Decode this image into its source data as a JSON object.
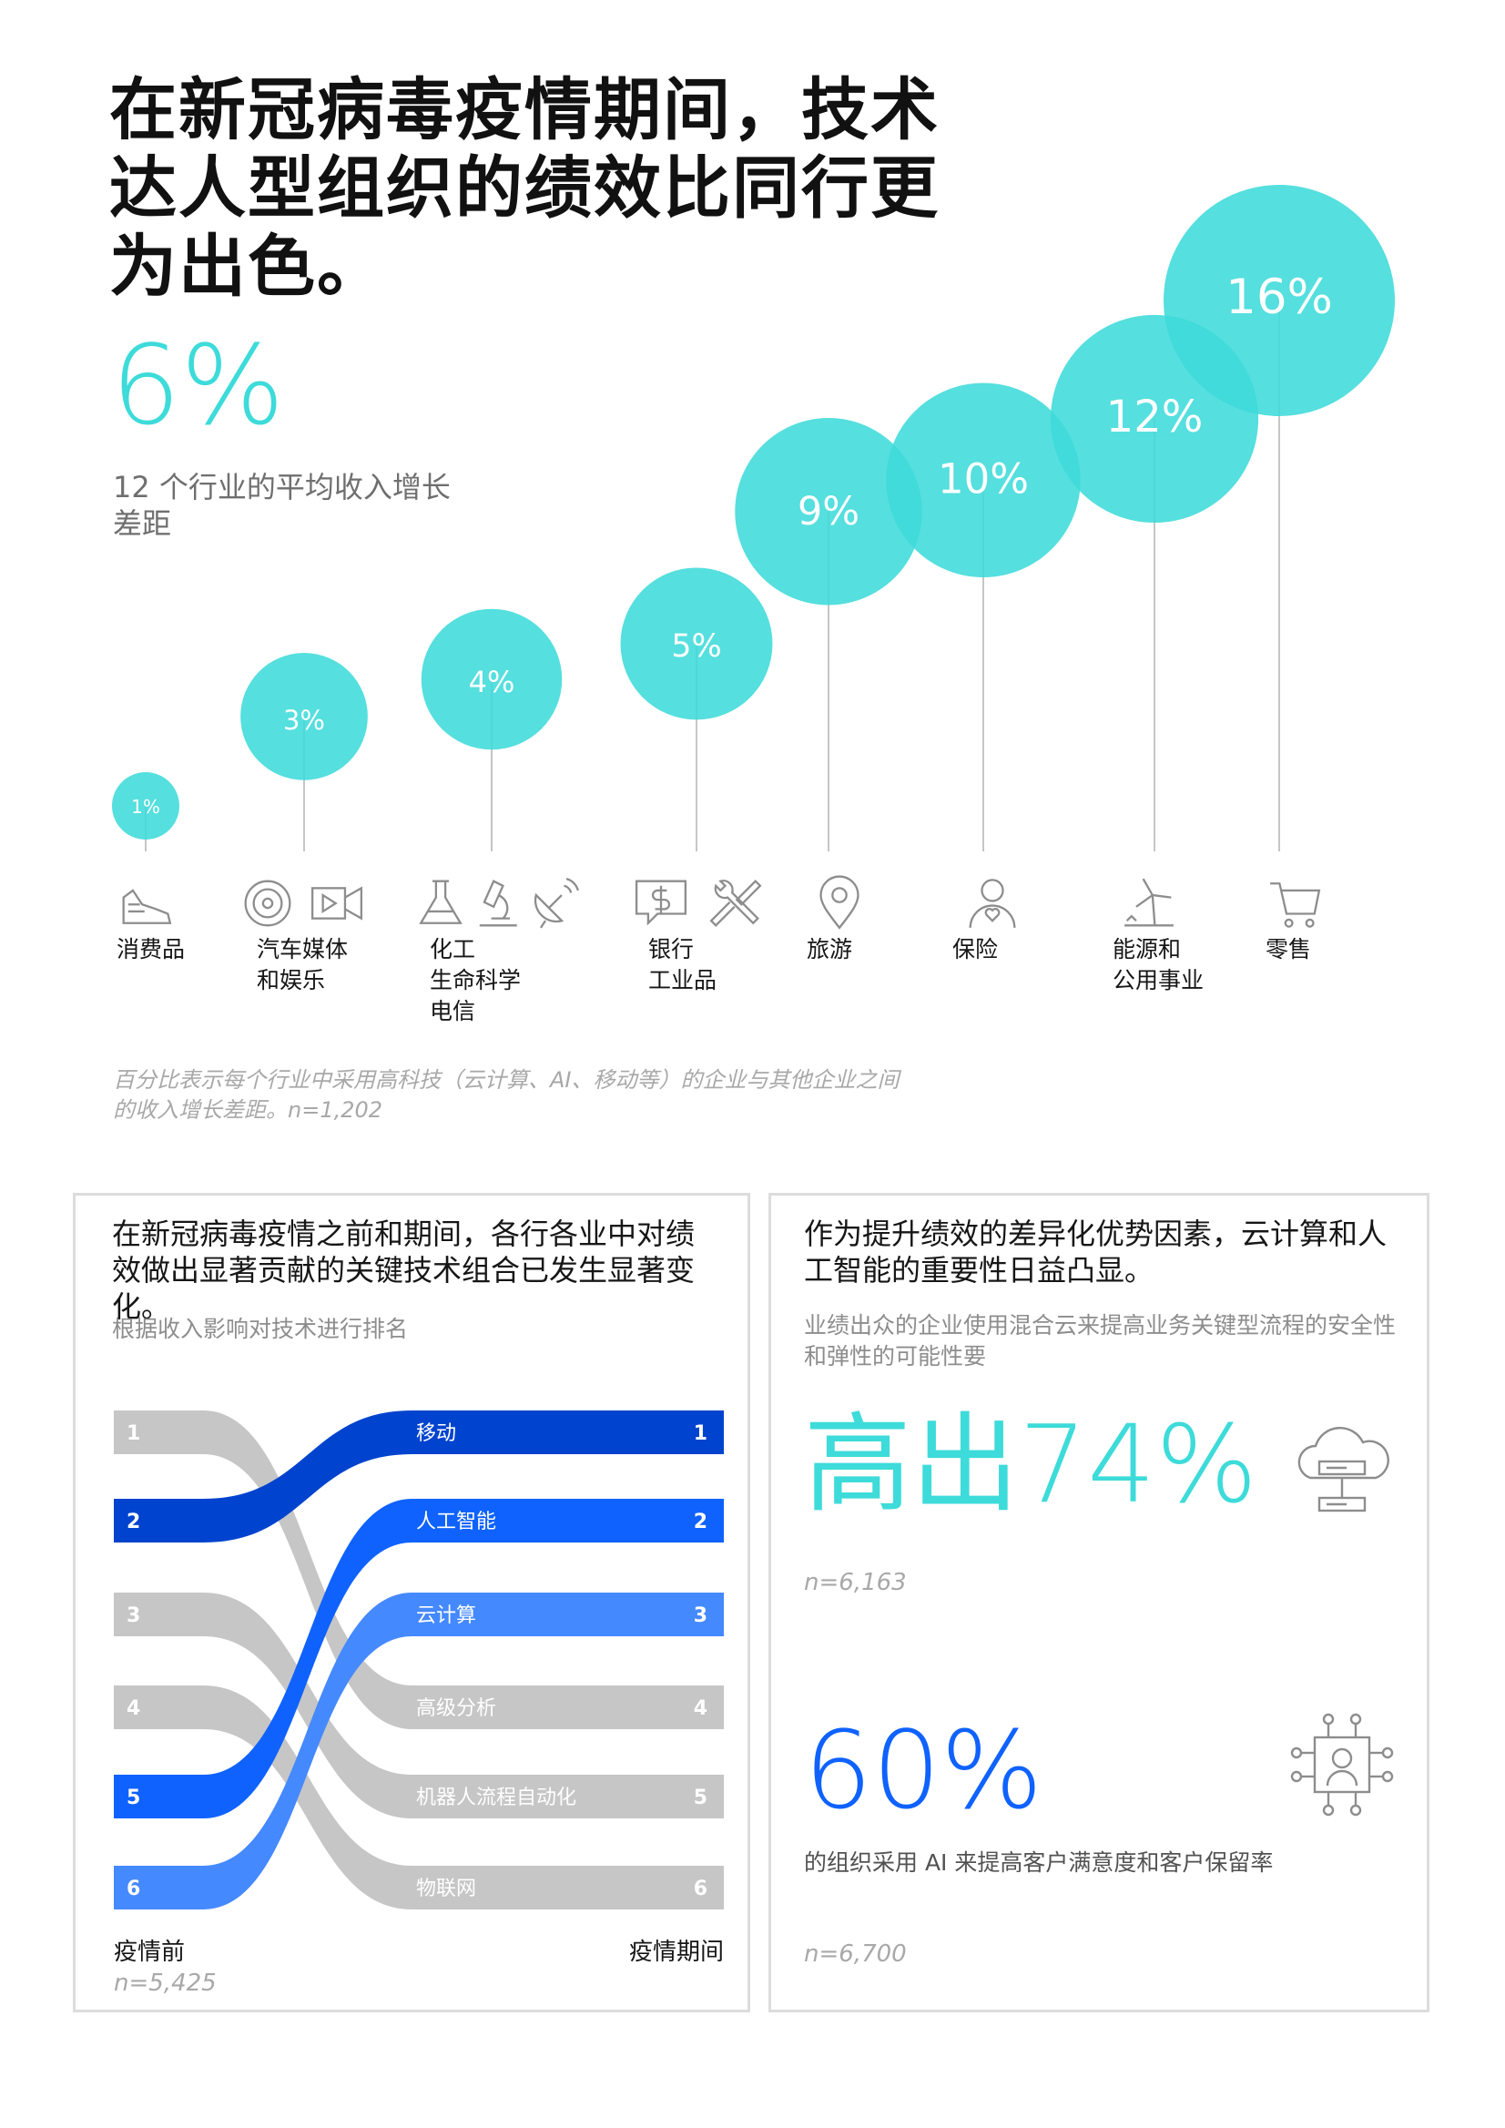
{
  "title_lines": [
    "在新冠病毒疫情期间，技术",
    "达人型组织的绩效比同行更",
    "为出色。"
  ],
  "headline_stat": {
    "value": "6%",
    "label_lines": [
      "12 个行业的平均收入增长",
      "差距"
    ]
  },
  "colors": {
    "teal": "#3ddbd9",
    "blue_dark": "#0043ce",
    "blue": "#0f62fe",
    "blue_light": "#4589ff",
    "gray": "#c6c6c6"
  },
  "chart_data": [
    {
      "type": "bubble",
      "title": "",
      "series": [
        {
          "value": 1,
          "label": "1%"
        },
        {
          "value": 3,
          "label": "3%"
        },
        {
          "value": 4,
          "label": "4%"
        },
        {
          "value": 5,
          "label": "5%"
        },
        {
          "value": 9,
          "label": "9%"
        },
        {
          "value": 10,
          "label": "10%"
        },
        {
          "value": 12,
          "label": "12%"
        },
        {
          "value": 16,
          "label": "16%"
        }
      ],
      "categories": [
        [
          "消费品"
        ],
        [
          "汽车媒体",
          "和娱乐"
        ],
        [
          "化工",
          "生命科学",
          "电信"
        ],
        [
          "银行",
          "工业品"
        ],
        [
          "旅游"
        ],
        [
          "保险"
        ],
        [
          "能源和",
          "公用事业"
        ],
        [
          "零售"
        ]
      ],
      "icons": [
        [
          "sneaker-icon"
        ],
        [
          "steering-wheel-icon",
          "video-camera-icon"
        ],
        [
          "flask-icon",
          "microscope-icon",
          "satellite-dish-icon"
        ],
        [
          "dollar-chat-icon",
          "wrench-screwdriver-icon"
        ],
        [
          "location-pin-icon"
        ],
        [
          "person-heart-icon"
        ],
        [
          "wind-turbine-icon"
        ],
        [
          "shopping-cart-icon"
        ]
      ]
    },
    {
      "type": "ranking",
      "title": "根据收入影响对技术进行排名",
      "x_labels": [
        "疫情前",
        "疫情期间"
      ],
      "before": [
        "1",
        "2",
        "3",
        "4",
        "5",
        "6"
      ],
      "during": [
        {
          "rank": "1",
          "name": "移动",
          "before_rank": 2
        },
        {
          "rank": "2",
          "name": "人工智能",
          "before_rank": 5
        },
        {
          "rank": "3",
          "name": "云计算",
          "before_rank": 6
        },
        {
          "rank": "4",
          "name": "高级分析",
          "before_rank": 1
        },
        {
          "rank": "5",
          "name": "机器人流程自动化",
          "before_rank": 3
        },
        {
          "rank": "6",
          "name": "物联网",
          "before_rank": 4
        }
      ]
    }
  ],
  "footnote": "百分比表示每个行业中采用高科技（云计算、AI、移动等）的企业与其他企业之间的收入增长差距。n=1,202",
  "left_panel": {
    "heading": "在新冠病毒疫情之前和期间，各行各业中对绩效做出显著贡献的关键技术组合已发生显著变化。",
    "sub": "根据收入影响对技术进行排名",
    "label_before": "疫情前",
    "label_during": "疫情期间",
    "n": "n=5,425"
  },
  "right_panel": {
    "heading": "作为提升绩效的差异化优势因素，云计算和人工智能的重要性日益凸显。",
    "stat1_desc": "业绩出众的企业使用混合云来提高业务关键型流程的安全性和弹性的可能性要",
    "stat1_value": "高出74%",
    "stat1_n": "n=6,163",
    "stat1_icon": "cloud-server-icon",
    "stat2_value": "60%",
    "stat2_desc": "的组织采用 AI 来提高客户满意度和客户保留率",
    "stat2_n": "n=6,700",
    "stat2_icon": "ai-chip-person-icon"
  }
}
